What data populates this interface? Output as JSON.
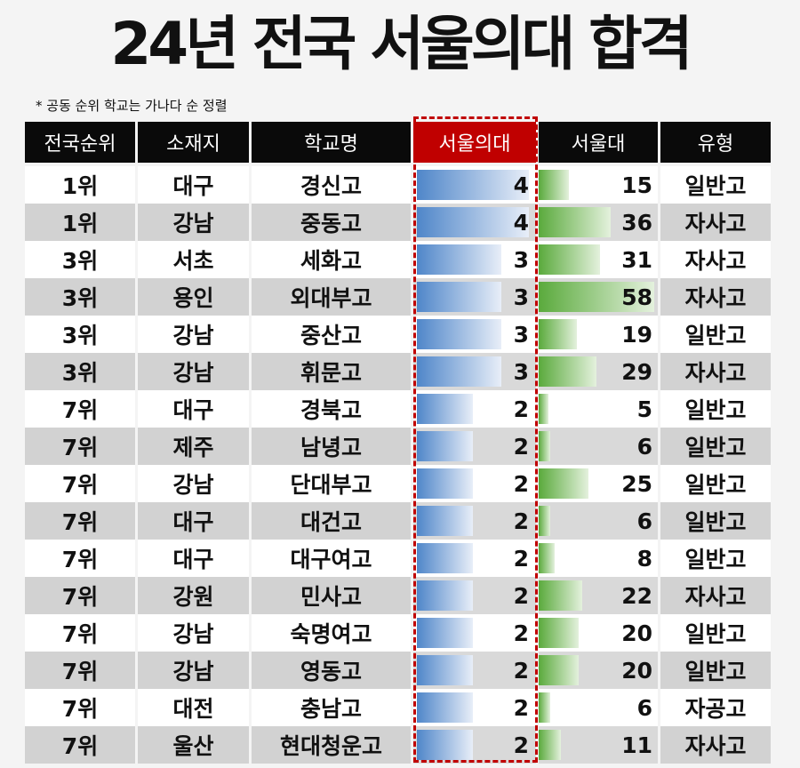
{
  "title": "24년 전국 서울의대 합격",
  "note": "* 공동 순위 학교는 가나다 순 정렬",
  "colors": {
    "header": "#0a0a0a",
    "highlight": "#c00000",
    "med_bar": "#4f86c9",
    "snu_bar": "#5aaa3c"
  },
  "chart_data": {
    "type": "table",
    "title": "24년 전국 서울의대 합격",
    "columns": [
      "전국순위",
      "소재지",
      "학교명",
      "서울의대",
      "서울대",
      "유형"
    ],
    "rows": [
      [
        "1위",
        "대구",
        "경신고",
        4,
        15,
        "일반고"
      ],
      [
        "1위",
        "강남",
        "중동고",
        4,
        36,
        "자사고"
      ],
      [
        "3위",
        "서초",
        "세화고",
        3,
        31,
        "자사고"
      ],
      [
        "3위",
        "용인",
        "외대부고",
        3,
        58,
        "자사고"
      ],
      [
        "3위",
        "강남",
        "중산고",
        3,
        19,
        "일반고"
      ],
      [
        "3위",
        "강남",
        "휘문고",
        3,
        29,
        "자사고"
      ],
      [
        "7위",
        "대구",
        "경북고",
        2,
        5,
        "일반고"
      ],
      [
        "7위",
        "제주",
        "남녕고",
        2,
        6,
        "일반고"
      ],
      [
        "7위",
        "강남",
        "단대부고",
        2,
        25,
        "일반고"
      ],
      [
        "7위",
        "대구",
        "대건고",
        2,
        6,
        "일반고"
      ],
      [
        "7위",
        "대구",
        "대구여고",
        2,
        8,
        "일반고"
      ],
      [
        "7위",
        "강원",
        "민사고",
        2,
        22,
        "자사고"
      ],
      [
        "7위",
        "강남",
        "숙명여고",
        2,
        20,
        "일반고"
      ],
      [
        "7위",
        "강남",
        "영동고",
        2,
        20,
        "일반고"
      ],
      [
        "7위",
        "대전",
        "충남고",
        2,
        6,
        "자공고"
      ],
      [
        "7위",
        "울산",
        "현대청운고",
        2,
        11,
        "자사고"
      ]
    ],
    "data_bars": {
      "서울의대": {
        "max": 4
      },
      "서울대": {
        "max": 58
      }
    }
  }
}
